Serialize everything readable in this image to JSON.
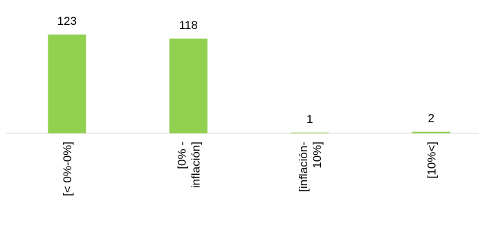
{
  "chart_data": {
    "type": "bar",
    "categories": [
      [
        "[< 0%-0%]"
      ],
      [
        "[0% -",
        "inflación]"
      ],
      [
        "[inflación-",
        "10%]"
      ],
      [
        "[10%<]"
      ]
    ],
    "values": [
      123,
      118,
      1,
      2
    ],
    "data_labels": [
      "123",
      "118",
      "1",
      "2"
    ],
    "title": "",
    "xlabel": "",
    "ylabel": "",
    "ylim": [
      0,
      123
    ],
    "grid": false,
    "legend": "none",
    "bar_color": "#92d050",
    "axis_color": "#d9d9d9"
  }
}
